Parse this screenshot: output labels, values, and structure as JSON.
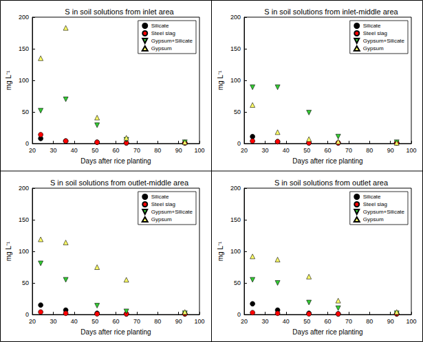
{
  "chart_data": [
    {
      "type": "scatter",
      "title": "S in soil solutions from inlet area",
      "xlabel": "Days after rice planting",
      "ylabel": "mg L⁻¹",
      "xlim": [
        20,
        100
      ],
      "xticks": [
        20,
        30,
        40,
        50,
        60,
        70,
        80,
        90,
        100
      ],
      "ylim": [
        0,
        200
      ],
      "yticks": [
        0,
        50,
        100,
        150,
        200
      ],
      "grid": false,
      "legend": "upper right",
      "x": [
        24,
        36,
        51,
        65,
        93
      ],
      "series": [
        {
          "name": "Silicate",
          "color": "#000000",
          "marker": "circle",
          "values": [
            8,
            4,
            2,
            1,
            1
          ]
        },
        {
          "name": "Steel slag",
          "color": "#ff0000",
          "marker": "circle",
          "values": [
            14,
            4,
            2,
            1,
            1
          ]
        },
        {
          "name": "Gypsum+Silicate",
          "color": "#33cc33",
          "marker": "triangle_down",
          "values": [
            52,
            70,
            29,
            6,
            2
          ]
        },
        {
          "name": "Gypsum",
          "color": "#ffff66",
          "marker": "triangle_up",
          "values": [
            135,
            183,
            41,
            9,
            2
          ]
        }
      ]
    },
    {
      "type": "scatter",
      "title": "S in soil solutions from inlet-middle area",
      "xlabel": "Days after rice planting",
      "ylabel": "mg L⁻¹",
      "xlim": [
        20,
        100
      ],
      "xticks": [
        20,
        30,
        40,
        50,
        60,
        70,
        80,
        90,
        100
      ],
      "ylim": [
        0,
        200
      ],
      "yticks": [
        0,
        50,
        100,
        150,
        200
      ],
      "grid": false,
      "legend": "upper right",
      "x": [
        24,
        36,
        51,
        65,
        93
      ],
      "series": [
        {
          "name": "Silicate",
          "color": "#000000",
          "marker": "circle",
          "values": [
            11,
            3,
            1,
            1,
            1
          ]
        },
        {
          "name": "Steel slag",
          "color": "#ff0000",
          "marker": "circle",
          "values": [
            4,
            3,
            1,
            1,
            1
          ]
        },
        {
          "name": "Gypsum+Silicate",
          "color": "#33cc33",
          "marker": "triangle_down",
          "values": [
            89,
            89,
            49,
            11,
            2
          ]
        },
        {
          "name": "Gypsum",
          "color": "#ffff66",
          "marker": "triangle_up",
          "values": [
            61,
            18,
            7,
            3,
            1
          ]
        }
      ]
    },
    {
      "type": "scatter",
      "title": "S in soil solutions from outlet-middle area",
      "xlabel": "Days after rice planting",
      "ylabel": "mg L⁻¹",
      "xlim": [
        20,
        100
      ],
      "xticks": [
        20,
        30,
        40,
        50,
        60,
        70,
        80,
        90,
        100
      ],
      "ylim": [
        0,
        200
      ],
      "yticks": [
        0,
        50,
        100,
        150,
        200
      ],
      "grid": false,
      "legend": "upper right",
      "x": [
        24,
        36,
        51,
        65,
        93
      ],
      "series": [
        {
          "name": "Silicate",
          "color": "#000000",
          "marker": "circle",
          "values": [
            15,
            7,
            2,
            1,
            1
          ]
        },
        {
          "name": "Steel slag",
          "color": "#ff0000",
          "marker": "circle",
          "values": [
            4,
            2,
            1,
            1,
            1
          ]
        },
        {
          "name": "Gypsum+Silicate",
          "color": "#33cc33",
          "marker": "triangle_down",
          "values": [
            81,
            55,
            14,
            5,
            2
          ]
        },
        {
          "name": "Gypsum",
          "color": "#ffff66",
          "marker": "triangle_up",
          "values": [
            119,
            114,
            75,
            55,
            4
          ]
        }
      ]
    },
    {
      "type": "scatter",
      "title": "S in soil solutions from outlet area",
      "xlabel": "Days after rice planting",
      "ylabel": "mg L⁻¹",
      "xlim": [
        20,
        100
      ],
      "xticks": [
        20,
        30,
        40,
        50,
        60,
        70,
        80,
        90,
        100
      ],
      "ylim": [
        0,
        200
      ],
      "yticks": [
        0,
        50,
        100,
        150,
        200
      ],
      "grid": false,
      "legend": "upper right",
      "x": [
        24,
        36,
        51,
        65,
        93
      ],
      "series": [
        {
          "name": "Silicate",
          "color": "#000000",
          "marker": "circle",
          "values": [
            17,
            7,
            2,
            1,
            1
          ]
        },
        {
          "name": "Steel slag",
          "color": "#ff0000",
          "marker": "circle",
          "values": [
            3,
            2,
            1,
            1,
            1
          ]
        },
        {
          "name": "Gypsum+Silicate",
          "color": "#33cc33",
          "marker": "triangle_down",
          "values": [
            55,
            50,
            19,
            10,
            2
          ]
        },
        {
          "name": "Gypsum",
          "color": "#ffff66",
          "marker": "triangle_up",
          "values": [
            92,
            87,
            60,
            22,
            4
          ]
        }
      ]
    }
  ]
}
